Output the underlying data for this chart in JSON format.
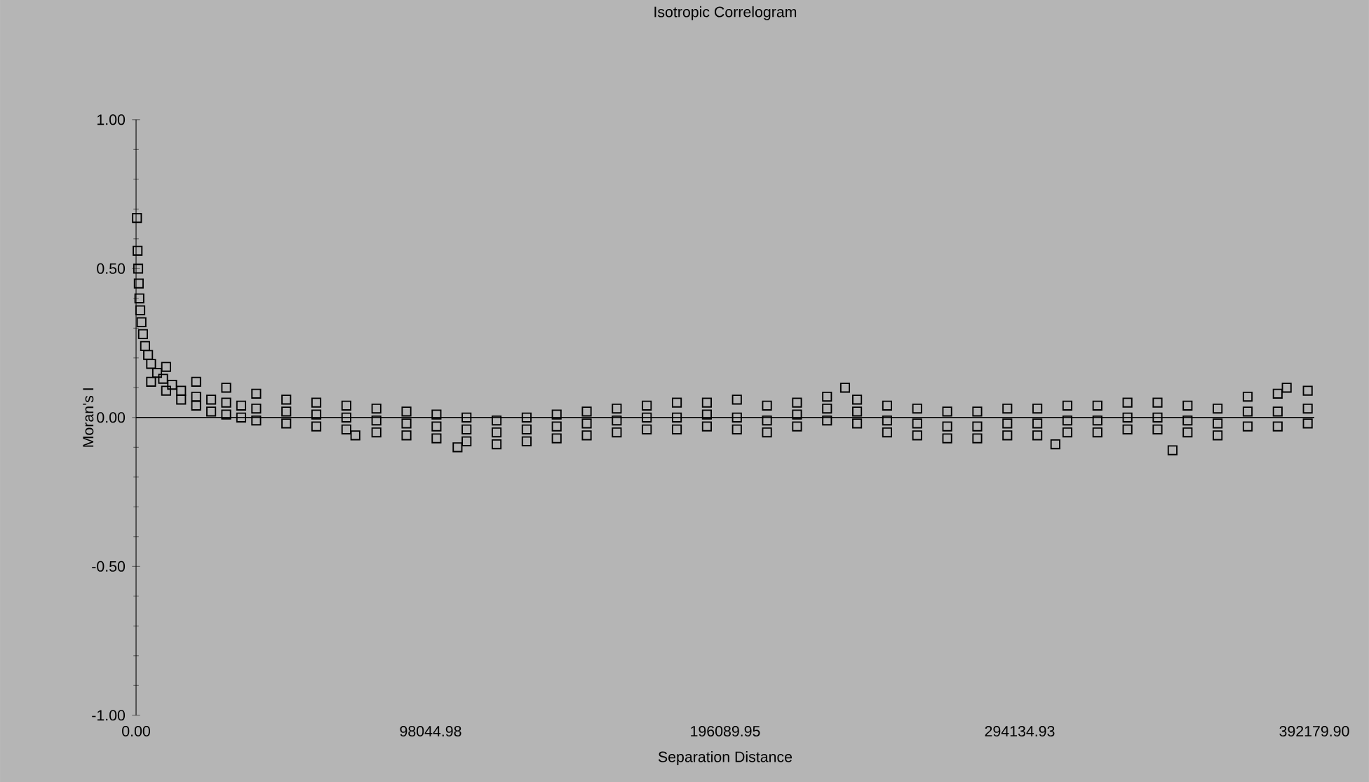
{
  "chart_data": {
    "type": "scatter",
    "title": "Isotropic Correlogram",
    "xlabel": "Separation Distance",
    "ylabel": "Moran's I",
    "xlim": [
      0,
      392179.9
    ],
    "ylim": [
      -1,
      1
    ],
    "xticks": [
      {
        "value": 0,
        "label": "0.00"
      },
      {
        "value": 98044.98,
        "label": "98044.98"
      },
      {
        "value": 196089.95,
        "label": "196089.95"
      },
      {
        "value": 294134.93,
        "label": "294134.93"
      },
      {
        "value": 392179.9,
        "label": "392179.90"
      }
    ],
    "yticks": [
      {
        "value": -1,
        "label": "-1.00"
      },
      {
        "value": -0.5,
        "label": "-0.50"
      },
      {
        "value": 0,
        "label": "0.00"
      },
      {
        "value": 0.5,
        "label": "0.50"
      },
      {
        "value": 1,
        "label": "1.00"
      }
    ],
    "marker": "square",
    "ref_lines": [
      {
        "axis": "y",
        "value": 0,
        "color": "#000000"
      }
    ],
    "series": [
      {
        "color": "#000000",
        "x": [
          300,
          500,
          700,
          900,
          1100,
          1400,
          1800,
          2300,
          3000,
          4000,
          5000,
          7000,
          9000,
          12000,
          15000,
          20000,
          25000,
          30000,
          35000,
          40000,
          5000,
          10000,
          15000,
          20000,
          25000,
          30000,
          35000,
          40000,
          10000,
          20000,
          30000,
          40000,
          50000,
          60000,
          70000,
          80000,
          90000,
          100000,
          110000,
          120000,
          130000,
          140000,
          150000,
          160000,
          170000,
          180000,
          190000,
          200000,
          210000,
          220000,
          230000,
          240000,
          250000,
          260000,
          270000,
          280000,
          290000,
          300000,
          310000,
          320000,
          330000,
          340000,
          350000,
          360000,
          370000,
          380000,
          390000,
          50000,
          60000,
          70000,
          80000,
          90000,
          100000,
          110000,
          120000,
          130000,
          140000,
          150000,
          160000,
          170000,
          180000,
          190000,
          200000,
          210000,
          220000,
          230000,
          240000,
          250000,
          260000,
          270000,
          280000,
          290000,
          300000,
          310000,
          320000,
          330000,
          340000,
          350000,
          360000,
          370000,
          380000,
          390000,
          50000,
          60000,
          70000,
          80000,
          90000,
          100000,
          110000,
          120000,
          130000,
          140000,
          150000,
          160000,
          170000,
          180000,
          190000,
          200000,
          210000,
          220000,
          230000,
          240000,
          250000,
          260000,
          270000,
          280000,
          290000,
          300000,
          310000,
          320000,
          330000,
          340000,
          350000,
          360000,
          370000,
          380000,
          390000,
          73000,
          107000,
          236000,
          306000,
          345000,
          383000
        ],
        "values": [
          0.67,
          0.56,
          0.5,
          0.45,
          0.4,
          0.36,
          0.32,
          0.28,
          0.24,
          0.21,
          0.18,
          0.15,
          0.13,
          0.11,
          0.09,
          0.07,
          0.06,
          0.05,
          0.04,
          0.03,
          0.12,
          0.09,
          0.06,
          0.04,
          0.02,
          0.01,
          0.0,
          -0.01,
          0.17,
          0.12,
          0.1,
          0.08,
          0.02,
          0.01,
          0.0,
          -0.01,
          -0.02,
          -0.03,
          -0.04,
          -0.05,
          -0.04,
          -0.03,
          -0.02,
          -0.01,
          0.0,
          0.0,
          0.01,
          0.0,
          -0.01,
          0.01,
          0.03,
          0.02,
          -0.01,
          -0.02,
          -0.03,
          -0.03,
          -0.02,
          -0.02,
          -0.01,
          -0.01,
          0.0,
          0.0,
          -0.01,
          -0.02,
          0.02,
          0.02,
          0.03,
          0.06,
          0.05,
          0.04,
          0.03,
          0.02,
          0.01,
          0.0,
          -0.01,
          0.0,
          0.01,
          0.02,
          0.03,
          0.04,
          0.05,
          0.05,
          0.06,
          0.04,
          0.05,
          0.07,
          0.06,
          0.04,
          0.03,
          0.02,
          0.02,
          0.03,
          0.03,
          0.04,
          0.04,
          0.05,
          0.05,
          0.04,
          0.03,
          0.07,
          0.08,
          0.09,
          -0.02,
          -0.03,
          -0.04,
          -0.05,
          -0.06,
          -0.07,
          -0.08,
          -0.09,
          -0.08,
          -0.07,
          -0.06,
          -0.05,
          -0.04,
          -0.04,
          -0.03,
          -0.04,
          -0.05,
          -0.03,
          -0.01,
          -0.02,
          -0.05,
          -0.06,
          -0.07,
          -0.07,
          -0.06,
          -0.06,
          -0.05,
          -0.05,
          -0.04,
          -0.04,
          -0.05,
          -0.06,
          -0.03,
          -0.03,
          -0.02,
          -0.06,
          -0.1,
          0.1,
          -0.09,
          -0.11,
          0.1
        ]
      }
    ]
  }
}
